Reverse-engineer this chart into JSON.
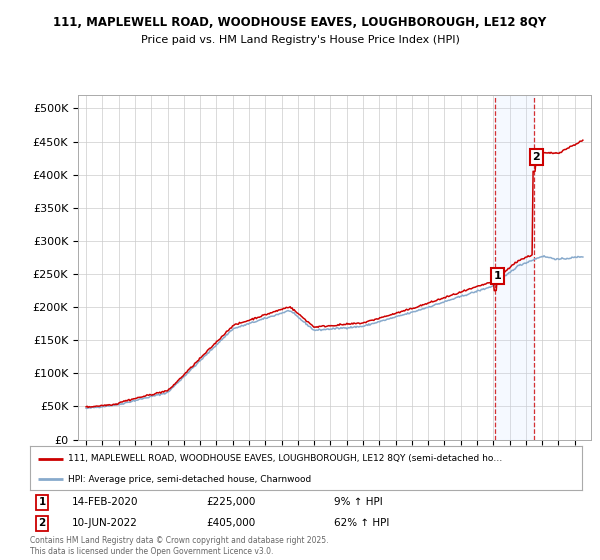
{
  "title_line1": "111, MAPLEWELL ROAD, WOODHOUSE EAVES, LOUGHBOROUGH, LE12 8QY",
  "title_line2": "Price paid vs. HM Land Registry's House Price Index (HPI)",
  "background_color": "#ffffff",
  "plot_bg_color": "#ffffff",
  "grid_color": "#cccccc",
  "line1_color": "#cc0000",
  "line2_color": "#88aacc",
  "marker1_x": 2020.125,
  "marker1_y": 225000,
  "marker2_x": 2022.5,
  "marker2_y": 405000,
  "legend_line1": "111, MAPLEWELL ROAD, WOODHOUSE EAVES, LOUGHBOROUGH, LE12 8QY (semi-detached ho…",
  "legend_line2": "HPI: Average price, semi-detached house, Charnwood",
  "footer": "Contains HM Land Registry data © Crown copyright and database right 2025.\nThis data is licensed under the Open Government Licence v3.0.",
  "ylim": [
    0,
    520000
  ],
  "yticks": [
    0,
    50000,
    100000,
    150000,
    200000,
    250000,
    300000,
    350000,
    400000,
    450000,
    500000
  ],
  "ytick_labels": [
    "£0",
    "£50K",
    "£100K",
    "£150K",
    "£200K",
    "£250K",
    "£300K",
    "£350K",
    "£400K",
    "£450K",
    "£500K"
  ],
  "shade_color": "#cce0ff",
  "xlim_left": 1994.5,
  "xlim_right": 2026.0
}
